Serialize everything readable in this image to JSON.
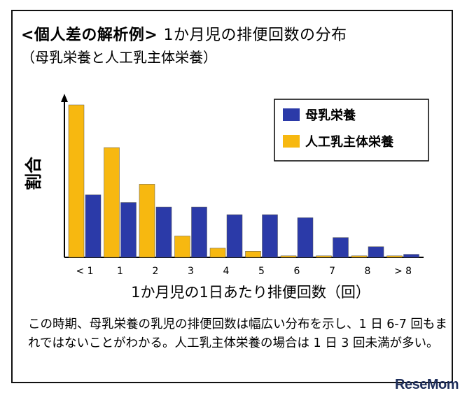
{
  "heading": {
    "line1_bold": "<個人差の解析例>",
    "line1_rest": "1か月児の排便回数の分布",
    "line2": "（母乳栄養と人工乳主体栄養）"
  },
  "chart_data": {
    "type": "bar",
    "categories": [
      "< 1",
      "1",
      "2",
      "3",
      "4",
      "5",
      "6",
      "7",
      "8",
      "> 8"
    ],
    "series": [
      {
        "name": "母乳栄養",
        "color": "#2b3aa8",
        "values": [
          41,
          36,
          33,
          33,
          28,
          28,
          26,
          13,
          7,
          2
        ]
      },
      {
        "name": "人工乳主体栄養",
        "color": "#f7b810",
        "values": [
          100,
          72,
          48,
          14,
          6,
          4,
          1,
          1,
          1,
          1
        ]
      }
    ],
    "xlabel": "1か月児の1日あたり排便回数（回）",
    "ylabel": "割合",
    "ylim": [
      0,
      100
    ],
    "grid": false,
    "legend": "top-right"
  },
  "caption": "この時期、母乳栄養の乳児の排便回数は幅広い分布を示し、1 日 6-7 回もまれではないことがわかる。人工乳主体栄養の場合は 1 日 3 回未満が多い。",
  "watermark": "ReseMom"
}
